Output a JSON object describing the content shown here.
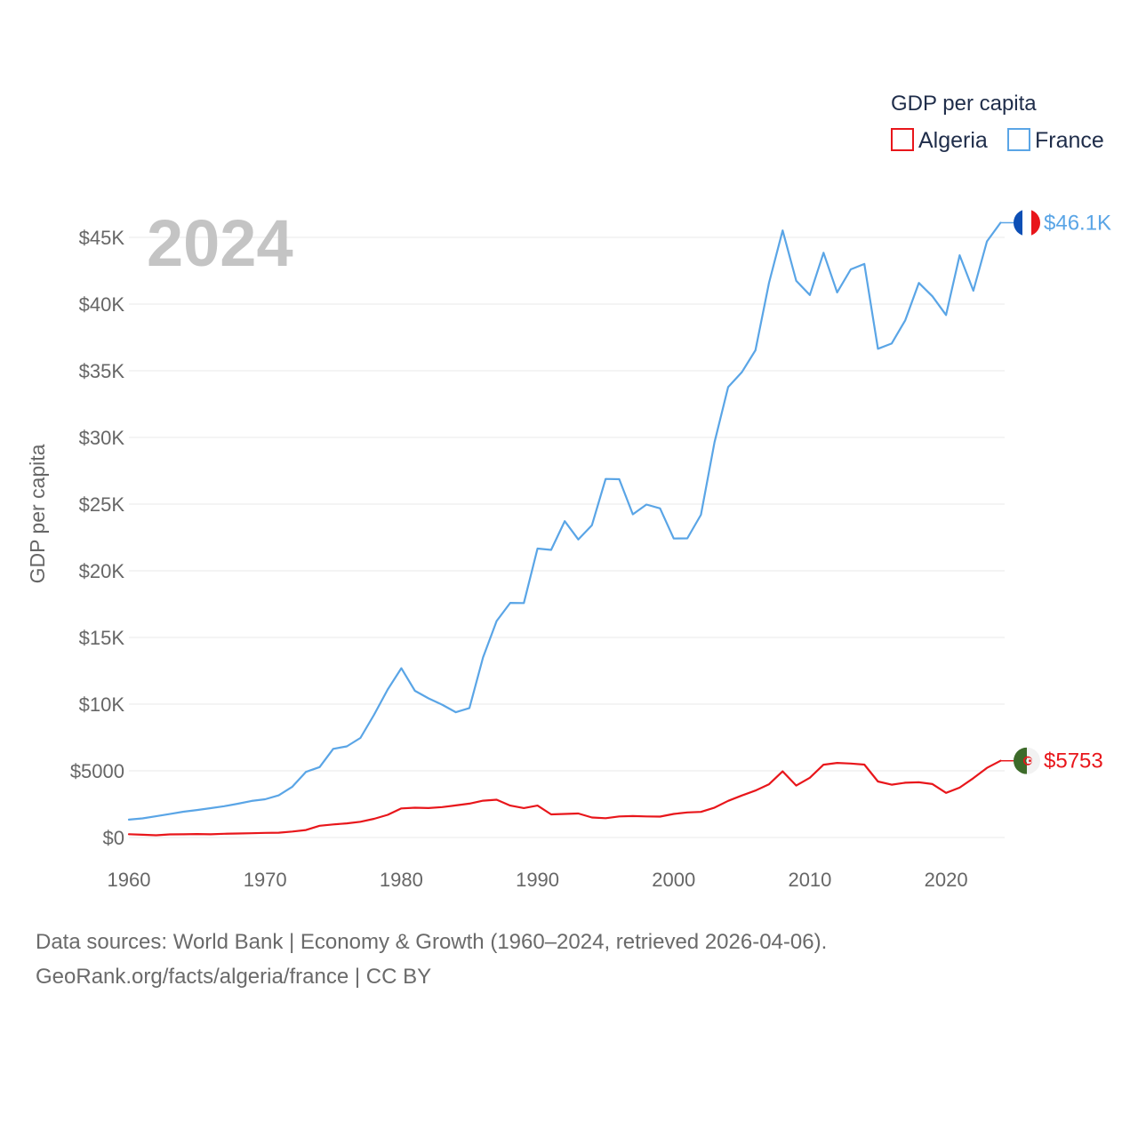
{
  "chart_data": {
    "type": "line",
    "title": "GDP per capita",
    "current_year": "2024",
    "ylabel": "GDP per capita",
    "xlabel": "",
    "xlim": [
      1960,
      2024.5
    ],
    "ylim": [
      0,
      45000
    ],
    "x_ticks": [
      1960,
      1970,
      1980,
      1990,
      2000,
      2010,
      2020
    ],
    "y_ticks": [
      {
        "value": 0,
        "label": "$0"
      },
      {
        "value": 5000,
        "label": "$5000"
      },
      {
        "value": 10000,
        "label": "$10K"
      },
      {
        "value": 15000,
        "label": "$15K"
      },
      {
        "value": 20000,
        "label": "$20K"
      },
      {
        "value": 25000,
        "label": "$25K"
      },
      {
        "value": 30000,
        "label": "$30K"
      },
      {
        "value": 35000,
        "label": "$35K"
      },
      {
        "value": 40000,
        "label": "$40K"
      },
      {
        "value": 45000,
        "label": "$45K"
      }
    ],
    "x": [
      1960,
      1961,
      1962,
      1963,
      1964,
      1965,
      1966,
      1967,
      1968,
      1969,
      1970,
      1971,
      1972,
      1973,
      1974,
      1975,
      1976,
      1977,
      1978,
      1979,
      1980,
      1981,
      1982,
      1983,
      1984,
      1985,
      1986,
      1987,
      1988,
      1989,
      1990,
      1991,
      1992,
      1993,
      1994,
      1995,
      1996,
      1997,
      1998,
      1999,
      2000,
      2001,
      2002,
      2003,
      2004,
      2005,
      2006,
      2007,
      2008,
      2009,
      2010,
      2011,
      2012,
      2013,
      2014,
      2015,
      2016,
      2017,
      2018,
      2019,
      2020,
      2021,
      2022,
      2023,
      2024
    ],
    "series": [
      {
        "name": "Algeria",
        "color": "#e8161b",
        "end_label": "$5753",
        "values": [
          245,
          210,
          170,
          230,
          240,
          260,
          240,
          280,
          300,
          320,
          350,
          360,
          450,
          560,
          880,
          980,
          1060,
          1180,
          1400,
          1700,
          2180,
          2230,
          2210,
          2280,
          2410,
          2540,
          2760,
          2830,
          2390,
          2210,
          2390,
          1730,
          1770,
          1800,
          1500,
          1450,
          1580,
          1610,
          1580,
          1570,
          1770,
          1880,
          1920,
          2240,
          2750,
          3150,
          3520,
          3990,
          4960,
          3890,
          4480,
          5460,
          5590,
          5550,
          5470,
          4200,
          3960,
          4110,
          4140,
          4010,
          3350,
          3740,
          4450,
          5220,
          5753
        ]
      },
      {
        "name": "France",
        "color": "#5aa5e6",
        "end_label": "$46.1K",
        "values": [
          1340,
          1430,
          1590,
          1760,
          1930,
          2060,
          2200,
          2350,
          2530,
          2740,
          2870,
          3160,
          3810,
          4920,
          5280,
          6650,
          6830,
          7470,
          9200,
          11100,
          12690,
          11000,
          10430,
          9960,
          9390,
          9710,
          13500,
          16230,
          17590,
          17580,
          21670,
          21570,
          23720,
          22350,
          23420,
          26890,
          26870,
          24230,
          24970,
          24680,
          22420,
          22430,
          24200,
          29650,
          33770,
          34880,
          36530,
          41600,
          45520,
          41740,
          40680,
          43850,
          40870,
          42600,
          43010,
          36650,
          37040,
          38780,
          41590,
          40580,
          39180,
          43660,
          41000,
          44700,
          46100
        ]
      }
    ],
    "legend": {
      "title": "GDP per capita",
      "position": "top-right"
    }
  },
  "footer": {
    "line1": "Data sources: World Bank | Economy & Growth (1960–2024, retrieved 2026-04-06).",
    "line2": "GeoRank.org/facts/algeria/france | CC BY"
  },
  "flags": {
    "france": "france-flag-icon",
    "algeria": "algeria-flag-icon"
  }
}
